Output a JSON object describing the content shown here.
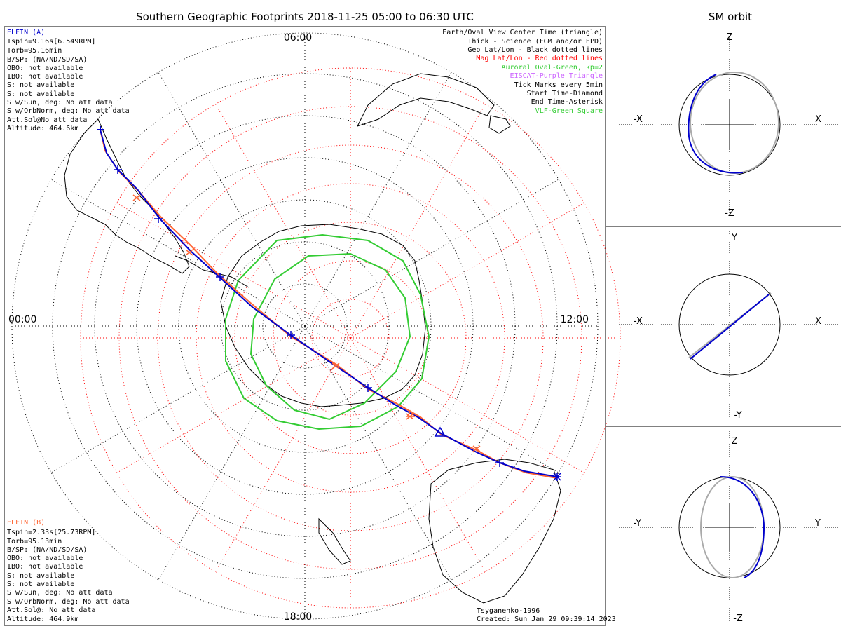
{
  "header": {
    "title": "Southern Geographic Footprints 2018-11-25 05:00 to 06:30 UTC",
    "orbit_title": "SM orbit"
  },
  "map": {
    "time_labels": {
      "top": "06:00",
      "left": "00:00",
      "right": "12:00",
      "bottom": "18:00"
    }
  },
  "elfin_a": {
    "name": "ELFIN (A)",
    "color": "#0000cc",
    "lines": [
      "Tspin=9.16s[6.549RPM]",
      "Torb=95.16min",
      "B/SP: (NA/ND/SD/SA)",
      "OBO: not available",
      "IBO: not available",
      "S: not available",
      "S: not available",
      "S w/Sun, deg: No att data",
      "S w/OrbNorm, deg: No att data",
      "Att.Sol@No att data",
      "Altitude: 464.6km"
    ]
  },
  "elfin_b": {
    "name": "ELFIN (B)",
    "color": "#ff6633",
    "lines": [
      "Tspin=2.33s[25.73RPM]",
      "Torb=95.13min",
      "B/SP: (NA/ND/SD/SA)",
      "OBO: not available",
      "IBO: not available",
      "S: not available",
      "S: not available",
      "S w/Sun, deg: No att data",
      "S w/OrbNorm, deg: No att data",
      "Att.Sol@: No att data",
      "Altitude: 464.9km"
    ]
  },
  "legend": [
    {
      "text": "Earth/Oval View Center Time (triangle)",
      "color": "#000000"
    },
    {
      "text": "Thick - Science (FGM and/or EPD)",
      "color": "#000000"
    },
    {
      "text": "Geo Lat/Lon - Black dotted lines",
      "color": "#000000"
    },
    {
      "text": "Mag Lat/Lon - Red dotted lines",
      "color": "#ff0000"
    },
    {
      "text": "Auroral Oval-Green, kp=2",
      "color": "#33cc33"
    },
    {
      "text": "EISCAT-Purple Triangle",
      "color": "#cc66ff"
    },
    {
      "text": "Tick Marks every 5min",
      "color": "#000000"
    },
    {
      "text": "Start Time-Diamond",
      "color": "#000000"
    },
    {
      "text": "End Time-Asterisk",
      "color": "#000000"
    },
    {
      "text": "VLF-Green Square",
      "color": "#33cc33"
    }
  ],
  "footer": {
    "model": "Tsyganenko-1996",
    "created": "Created: Sun Jan 29 09:39:14 2023"
  },
  "orbit_panels": [
    {
      "top": "Z",
      "bottom": "-Z",
      "left": "-X",
      "right": "X"
    },
    {
      "top": "Y",
      "bottom": "-Y",
      "left": "-X",
      "right": "X"
    },
    {
      "top": "Z",
      "bottom": "-Z",
      "left": "-Y",
      "right": "Y"
    }
  ],
  "colors": {
    "elfin_a": "#0000cc",
    "elfin_b": "#ff6633",
    "oval": "#33cc33",
    "mag_grid": "#ff0000"
  }
}
